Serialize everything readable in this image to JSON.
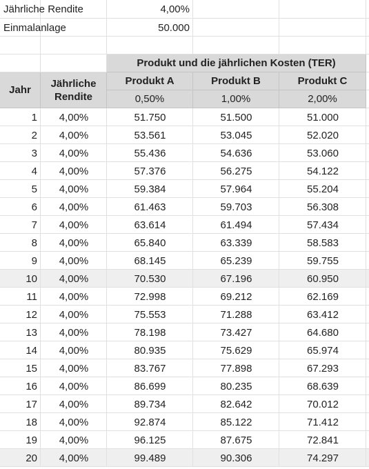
{
  "inputs": [
    [
      "Jährliche Rendite",
      "4,00%"
    ],
    [
      "Einmalanlage",
      "50.000"
    ]
  ],
  "table": {
    "group_header": "Produkt und die jährlichen Kosten (TER)",
    "headers": [
      "Jahr",
      "Jährliche Rendite",
      "Produkt A",
      "Produkt B",
      "Produkt C"
    ],
    "ter": [
      "0,50%",
      "1,00%",
      "2,00%"
    ],
    "rows": [
      [
        1,
        "4,00%",
        "51.750",
        "51.500",
        "51.000"
      ],
      [
        2,
        "4,00%",
        "53.561",
        "53.045",
        "52.020"
      ],
      [
        3,
        "4,00%",
        "55.436",
        "54.636",
        "53.060"
      ],
      [
        4,
        "4,00%",
        "57.376",
        "56.275",
        "54.122"
      ],
      [
        5,
        "4,00%",
        "59.384",
        "57.964",
        "55.204"
      ],
      [
        6,
        "4,00%",
        "61.463",
        "59.703",
        "56.308"
      ],
      [
        7,
        "4,00%",
        "63.614",
        "61.494",
        "57.434"
      ],
      [
        8,
        "4,00%",
        "65.840",
        "63.339",
        "58.583"
      ],
      [
        9,
        "4,00%",
        "68.145",
        "65.239",
        "59.755"
      ],
      [
        10,
        "4,00%",
        "70.530",
        "67.196",
        "60.950"
      ],
      [
        11,
        "4,00%",
        "72.998",
        "69.212",
        "62.169"
      ],
      [
        12,
        "4,00%",
        "75.553",
        "71.288",
        "63.412"
      ],
      [
        13,
        "4,00%",
        "78.198",
        "73.427",
        "64.680"
      ],
      [
        14,
        "4,00%",
        "80.935",
        "75.629",
        "65.974"
      ],
      [
        15,
        "4,00%",
        "83.767",
        "77.898",
        "67.293"
      ],
      [
        16,
        "4,00%",
        "86.699",
        "80.235",
        "68.639"
      ],
      [
        17,
        "4,00%",
        "89.734",
        "82.642",
        "70.012"
      ],
      [
        18,
        "4,00%",
        "92.874",
        "85.122",
        "71.412"
      ],
      [
        19,
        "4,00%",
        "96.125",
        "87.675",
        "72.841"
      ],
      [
        20,
        "4,00%",
        "99.489",
        "90.306",
        "74.297"
      ]
    ]
  }
}
